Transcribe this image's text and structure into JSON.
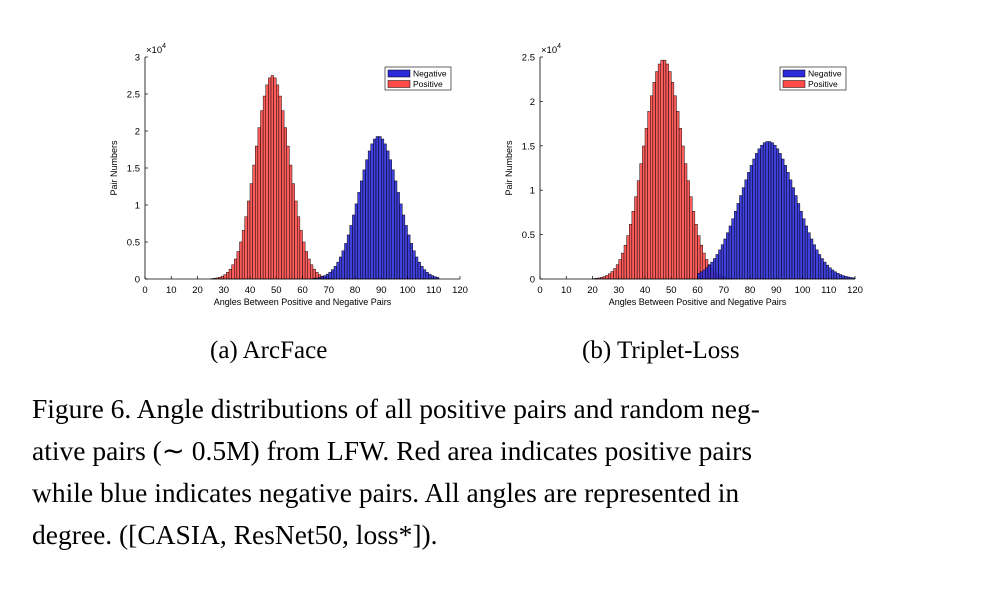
{
  "figure": {
    "caption_lines": [
      "Figure 6. Angle distributions of all positive pairs and random neg-",
      "ative pairs (∼ 0.5M) from LFW. Red area indicates positive pairs",
      "while blue indicates negative pairs.  All angles are represented in",
      "degree. ([CASIA, ResNet50, loss*])."
    ]
  },
  "colors": {
    "negative_fill": "#2b2bd9",
    "positive_fill": "#ff4a4a",
    "bar_edge": "#000000"
  },
  "chart_data": [
    {
      "type": "bar",
      "subcaption": "(a)  ArcFace",
      "xlabel": "Angles Between Positive and Negative Pairs",
      "ylabel": "Pair Numbers",
      "y_scale_label": "×10",
      "y_scale_exp": "4",
      "xlim": [
        0,
        120
      ],
      "ylim": [
        0,
        3
      ],
      "xticks": [
        0,
        10,
        20,
        30,
        40,
        50,
        60,
        70,
        80,
        90,
        100,
        110,
        120
      ],
      "yticks": [
        0,
        0.5,
        1,
        1.5,
        2,
        2.5,
        3
      ],
      "ytick_labels": [
        "0",
        "0.5",
        "1",
        "1.5",
        "2",
        "2.5",
        "3"
      ],
      "legend_position": "top-right",
      "bin_width": 1,
      "series": [
        {
          "name": "Negative",
          "color": "#2b2bd9",
          "mean": 89,
          "sd": 7.5,
          "peak": 1.93,
          "range": [
            64,
            112
          ]
        },
        {
          "name": "Positive",
          "color": "#ff4a4a",
          "mean": 48.5,
          "sd": 6.5,
          "peak": 2.75,
          "range": [
            12,
            80
          ]
        }
      ]
    },
    {
      "type": "bar",
      "subcaption": "(b)  Triplet-Loss",
      "xlabel": "Angles Between Positive and Negative Pairs",
      "ylabel": "Pair Numbers",
      "y_scale_label": "×10",
      "y_scale_exp": "4",
      "xlim": [
        0,
        120
      ],
      "ylim": [
        0,
        2.5
      ],
      "xticks": [
        0,
        10,
        20,
        30,
        40,
        50,
        60,
        70,
        80,
        90,
        100,
        110,
        120
      ],
      "yticks": [
        0,
        0.5,
        1,
        1.5,
        2,
        2.5
      ],
      "ytick_labels": [
        "0",
        "0.5",
        "1",
        "1.5",
        "2",
        "2.5"
      ],
      "legend_position": "top-right",
      "bin_width": 1,
      "series": [
        {
          "name": "Negative",
          "color": "#2b2bd9",
          "mean": 87,
          "sd": 10.5,
          "peak": 1.55,
          "range": [
            60,
            120
          ]
        },
        {
          "name": "Positive",
          "color": "#ff4a4a",
          "mean": 47,
          "sd": 7.5,
          "peak": 2.47,
          "range": [
            10,
            80
          ]
        }
      ]
    }
  ]
}
